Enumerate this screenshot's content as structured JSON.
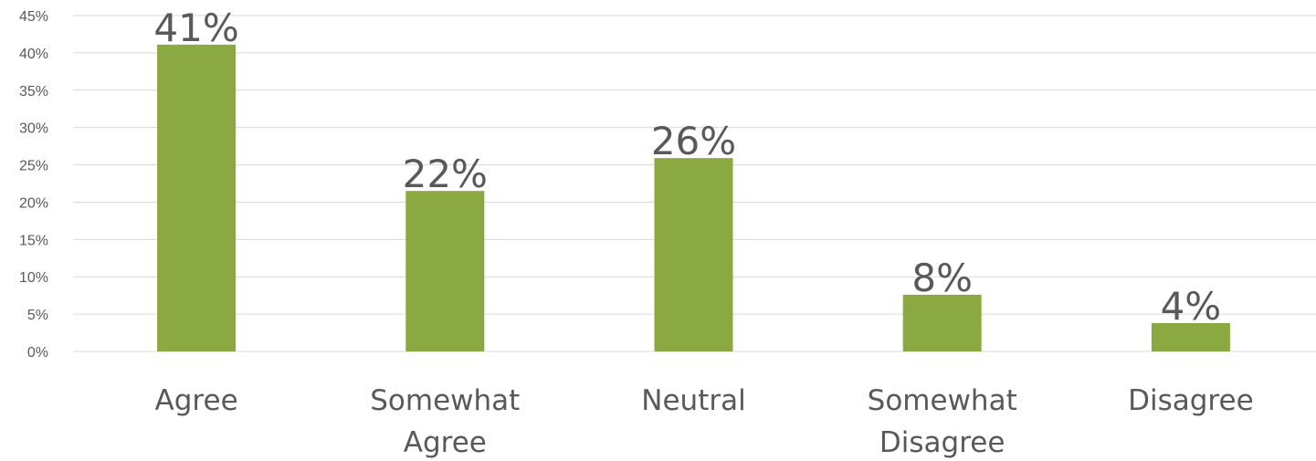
{
  "chart_data": {
    "type": "bar",
    "categories": [
      [
        "Agree"
      ],
      [
        "Somewhat",
        "Agree"
      ],
      [
        "Neutral"
      ],
      [
        "Somewhat",
        "Disagree"
      ],
      [
        "Disagree"
      ]
    ],
    "values": [
      41.1,
      21.5,
      25.9,
      7.6,
      3.8
    ],
    "data_labels": [
      "41%",
      "22%",
      "26%",
      "8%",
      "4%"
    ],
    "title": "",
    "xlabel": "",
    "ylabel": "",
    "ylim": [
      0,
      45
    ],
    "y_ticks": [
      0,
      5,
      10,
      15,
      20,
      25,
      30,
      35,
      40,
      45
    ],
    "y_tick_labels": [
      "0%",
      "5%",
      "10%",
      "15%",
      "20%",
      "25%",
      "30%",
      "35%",
      "40%",
      "45%"
    ],
    "grid": true,
    "legend": "none"
  },
  "colors": {
    "bar": "#8aa942",
    "grid": "#d9d9d9",
    "tick_text": "#595959",
    "category_text": "#595959",
    "data_label_text": "#595959"
  }
}
